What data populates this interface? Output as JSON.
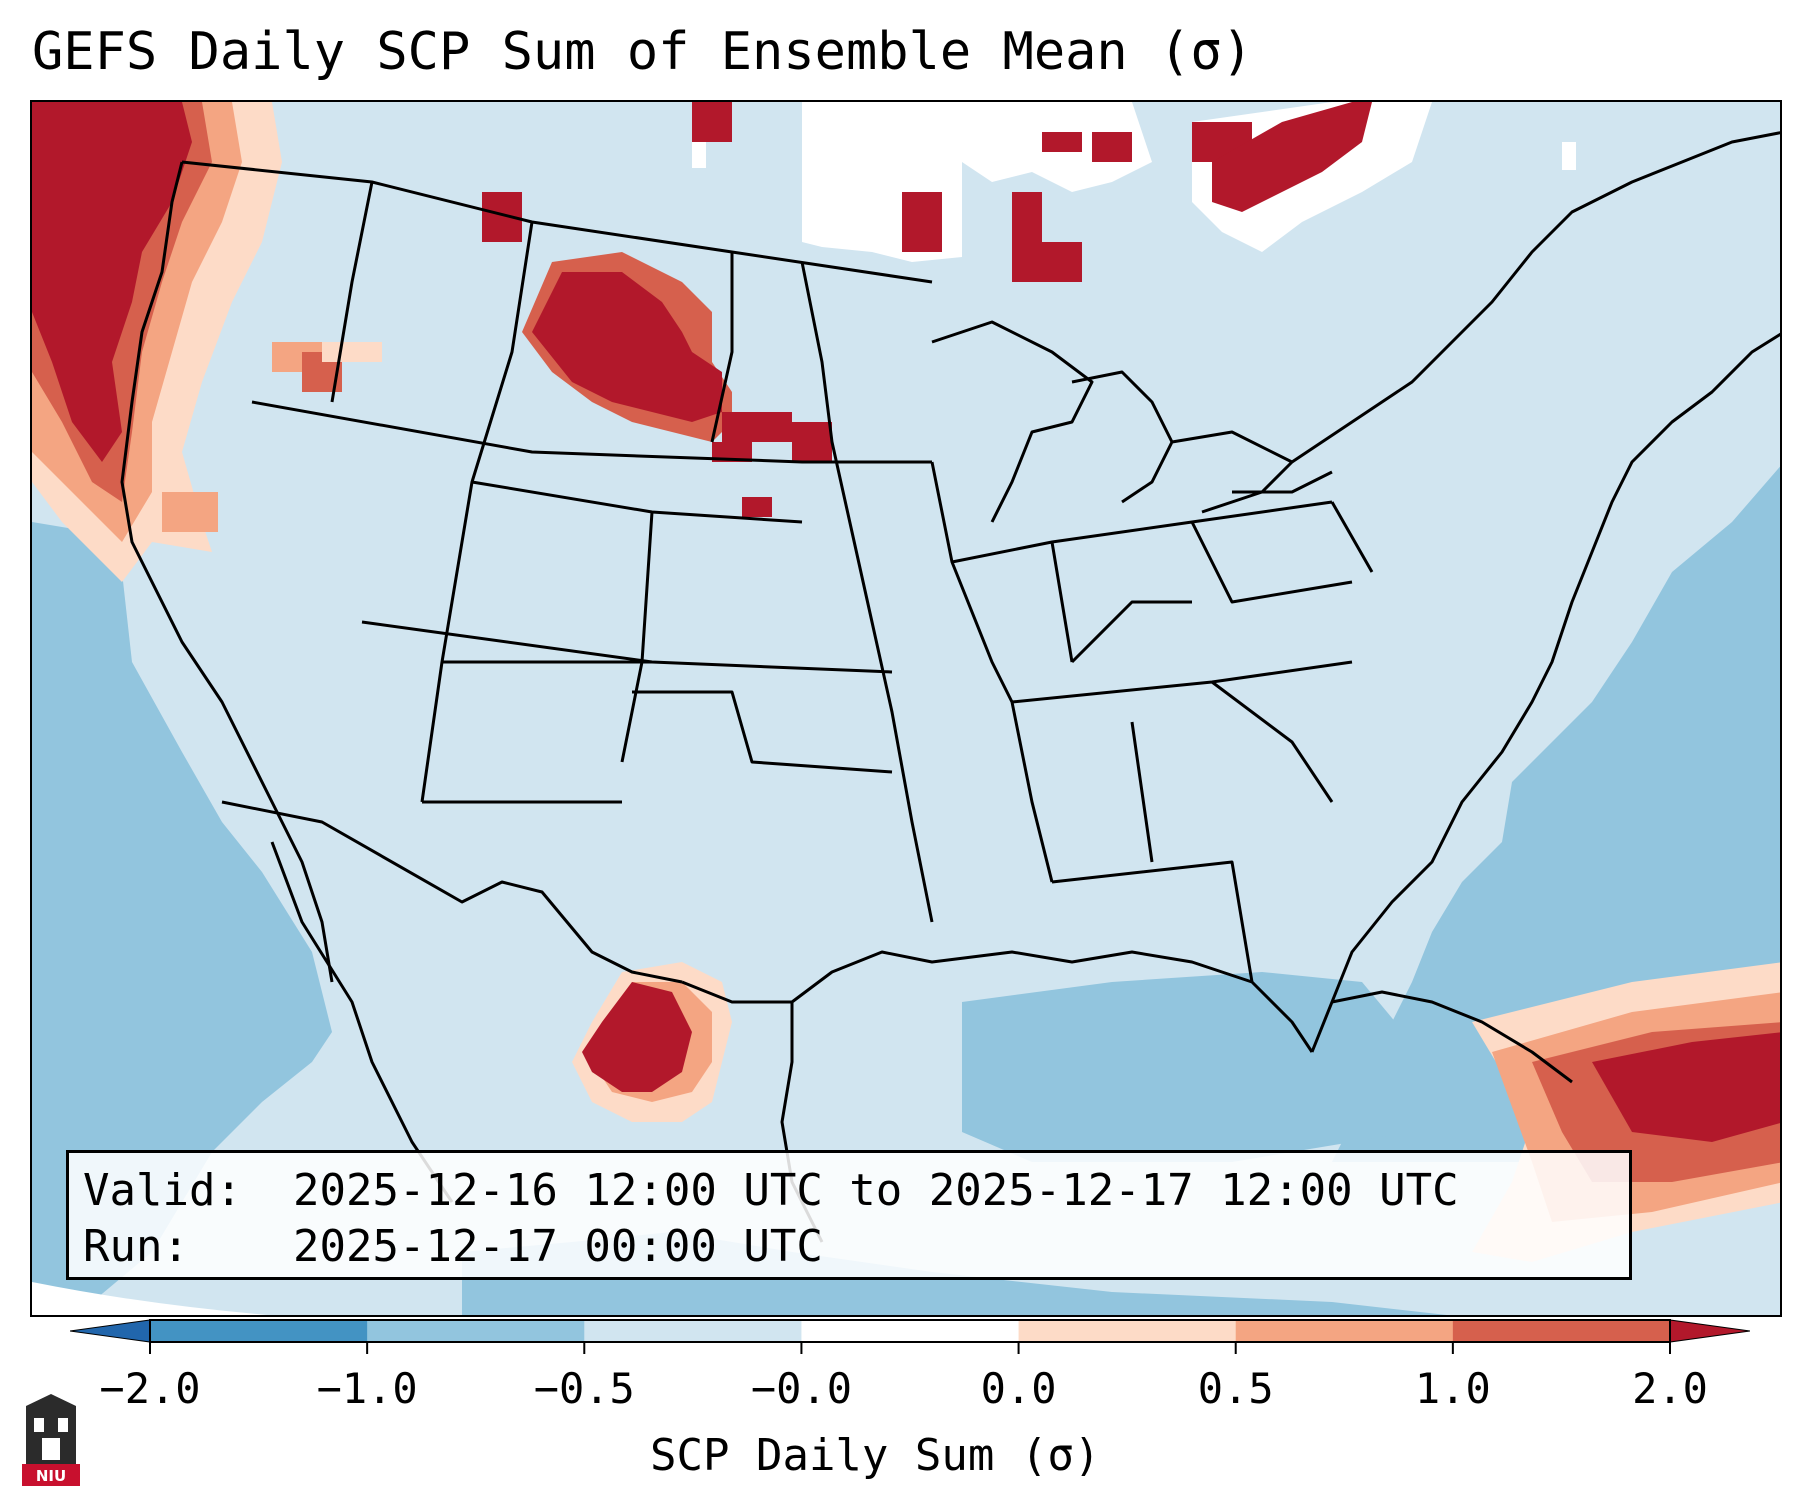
{
  "title": "GEFS Daily SCP Sum of Ensemble Mean (σ)",
  "info": {
    "valid_label": "Valid:",
    "valid_value": "2025-12-16 12:00 UTC to 2025-12-17 12:00 UTC",
    "run_label": "Run:",
    "run_value": "2025-12-17 00:00 UTC"
  },
  "colorbar": {
    "label": "SCP Daily Sum (σ)",
    "ticks": [
      "−2.0",
      "−1.0",
      "−0.5",
      "−0.0",
      "0.0",
      "0.5",
      "1.0",
      "2.0"
    ],
    "bins": [
      {
        "range": "< -2.0",
        "color": "#2166ac"
      },
      {
        "range": "-2.0 to -1.0",
        "color": "#4393c3"
      },
      {
        "range": "-1.0 to -0.5",
        "color": "#92c5de"
      },
      {
        "range": "-0.5 to -0.0",
        "color": "#d1e5f0"
      },
      {
        "range": "-0.0 to 0.0",
        "color": "#ffffff"
      },
      {
        "range": "0.0 to 0.5",
        "color": "#fddbc7"
      },
      {
        "range": "0.5 to 1.0",
        "color": "#f4a582"
      },
      {
        "range": "1.0 to 2.0",
        "color": "#d6604d"
      },
      {
        "range": "> 2.0",
        "color": "#b2182b"
      }
    ]
  },
  "logo": {
    "text": "NIU",
    "icon": "university-tower-icon"
  }
}
